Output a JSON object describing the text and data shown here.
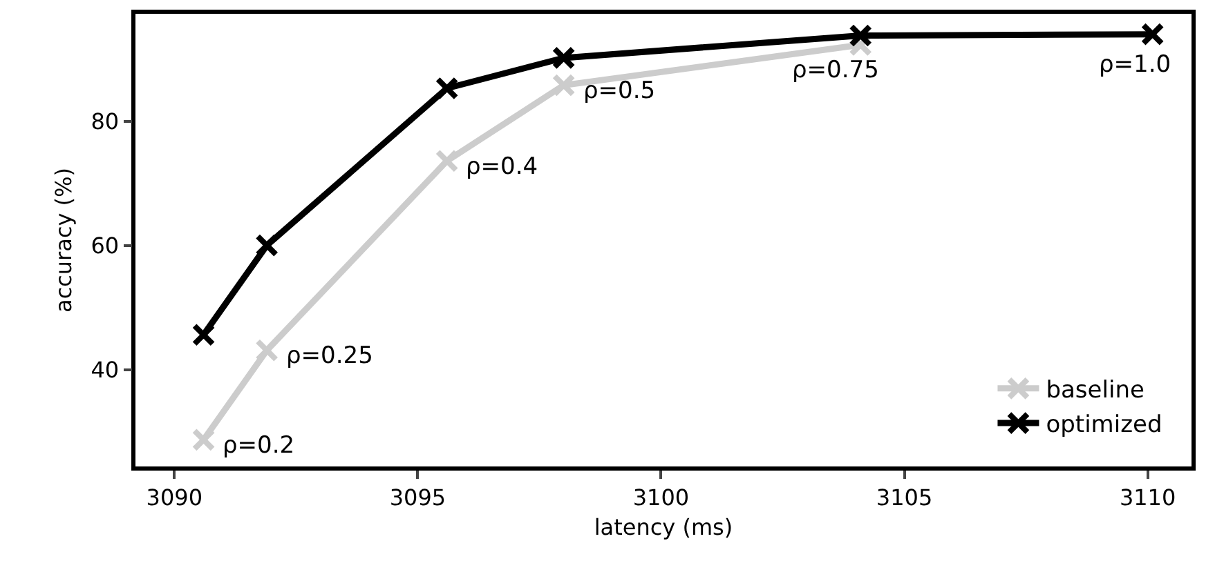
{
  "chart_data": {
    "type": "line",
    "xlabel": "latency (ms)",
    "ylabel": "accuracy (%)",
    "xlim": [
      3089.2,
      3110.9
    ],
    "ylim": [
      24.4,
      97.3
    ],
    "xticks": [
      3090,
      3095,
      3100,
      3105,
      3110
    ],
    "yticks": [
      40,
      60,
      80
    ],
    "grid": false,
    "legend": "bottom right",
    "marker": "cross",
    "line_style": "solid",
    "series": [
      {
        "name": "baseline",
        "color": "#cccccc",
        "x": [
          3090.6,
          3091.9,
          3095.6,
          3098.0,
          3104.1
        ],
        "values": [
          28.7,
          43.1,
          73.6,
          85.8,
          92.3
        ]
      },
      {
        "name": "optimized",
        "color": "#000000",
        "x": [
          3090.6,
          3091.9,
          3095.6,
          3098.0,
          3104.1,
          3110.1
        ],
        "values": [
          45.6,
          60.0,
          85.3,
          90.2,
          93.8,
          94.0
        ]
      }
    ],
    "annotations": [
      {
        "text": "ρ=0.2",
        "x": 3090.6,
        "y": 28.7
      },
      {
        "text": "ρ=0.25",
        "x": 3091.9,
        "y": 43.1
      },
      {
        "text": "ρ=0.4",
        "x": 3095.6,
        "y": 73.6
      },
      {
        "text": "ρ=0.5",
        "x": 3098.0,
        "y": 85.8
      },
      {
        "text": "ρ=0.75",
        "x": 3104.1,
        "y": 93.0
      },
      {
        "text": "ρ=1.0",
        "x": 3110.1,
        "y": 94.0
      }
    ]
  }
}
